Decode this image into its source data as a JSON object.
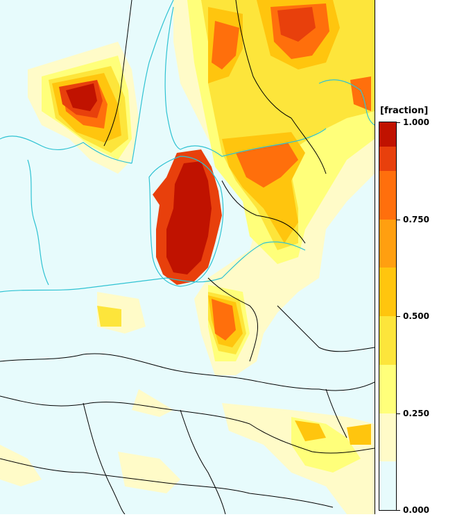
{
  "legend": {
    "title": "[fraction]",
    "ticks": [
      {
        "label": "1.000",
        "value": 1.0
      },
      {
        "label": "0.750",
        "value": 0.75
      },
      {
        "label": "0.500",
        "value": 0.5
      },
      {
        "label": "0.250",
        "value": 0.25
      },
      {
        "label": "0.000",
        "value": 0.0
      }
    ],
    "bands": [
      {
        "from": 0.0,
        "to": 0.125,
        "color": "#e7fbfc"
      },
      {
        "from": 0.125,
        "to": 0.25,
        "color": "#fffbc8"
      },
      {
        "from": 0.25,
        "to": 0.375,
        "color": "#ffff7a"
      },
      {
        "from": 0.375,
        "to": 0.5,
        "color": "#fde53b"
      },
      {
        "from": 0.5,
        "to": 0.625,
        "color": "#ffc50e"
      },
      {
        "from": 0.625,
        "to": 0.75,
        "color": "#ff9f10"
      },
      {
        "from": 0.75,
        "to": 0.875,
        "color": "#ff6f0c"
      },
      {
        "from": 0.875,
        "to": 0.9375,
        "color": "#e8400c"
      },
      {
        "from": 0.9375,
        "to": 1.0,
        "color": "#c01200"
      }
    ]
  },
  "colors": {
    "background": "#e7fbfc",
    "coastline": "#2ec2d2",
    "border": "#000000"
  }
}
